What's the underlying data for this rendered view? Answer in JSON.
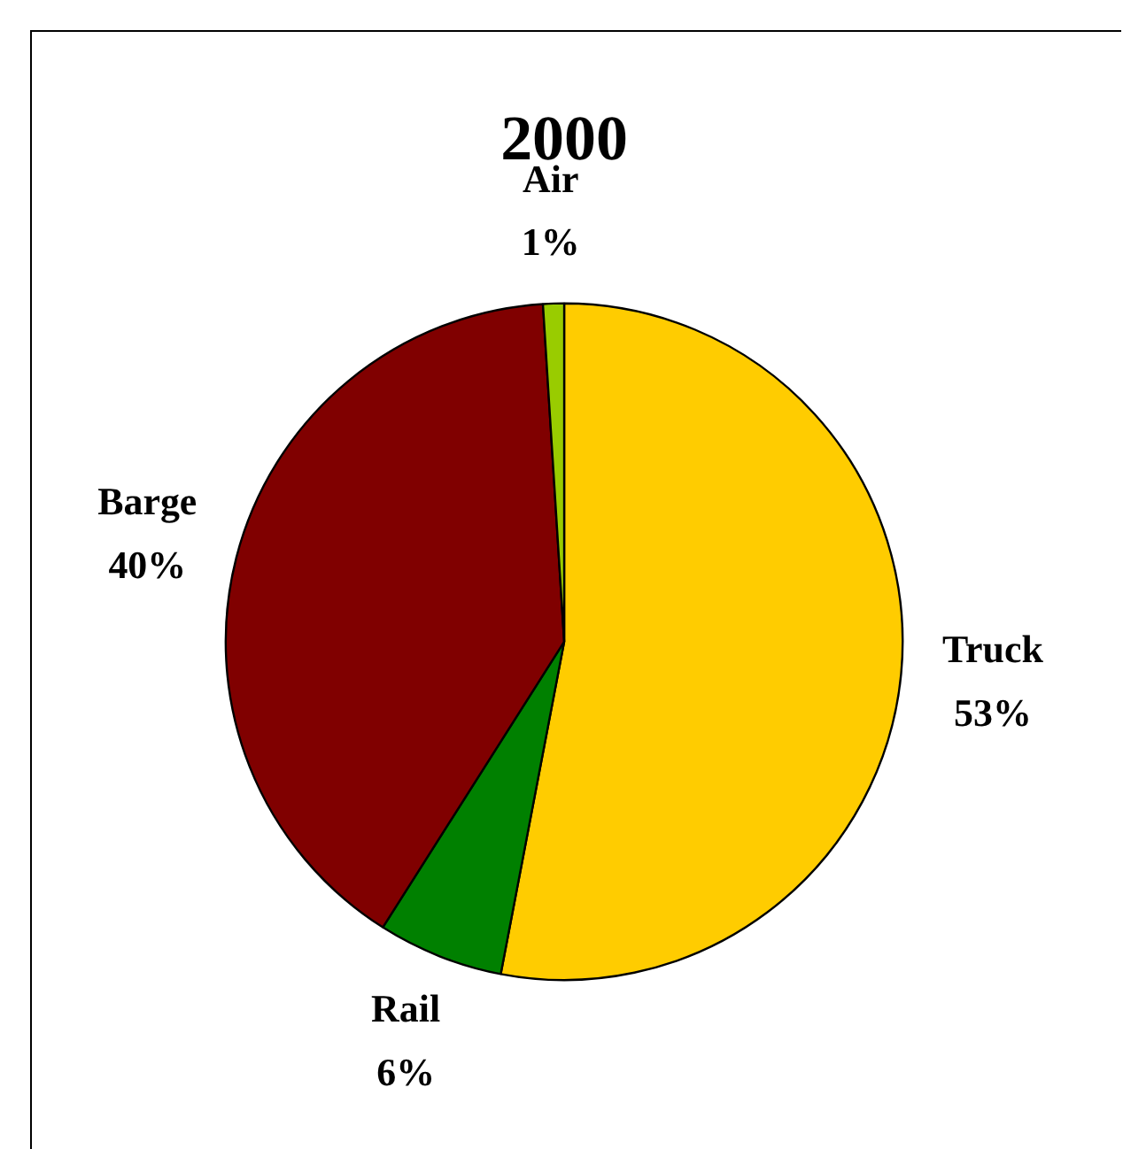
{
  "chart_data": {
    "type": "pie",
    "title": "2000",
    "categories": [
      "Truck",
      "Rail",
      "Barge",
      "Air"
    ],
    "values": [
      53,
      6,
      40,
      1
    ],
    "colors": [
      "#ffcc00",
      "#008000",
      "#800000",
      "#99cc00"
    ],
    "value_labels": [
      "53%",
      "6%",
      "40%",
      "1%"
    ],
    "legend": false
  }
}
